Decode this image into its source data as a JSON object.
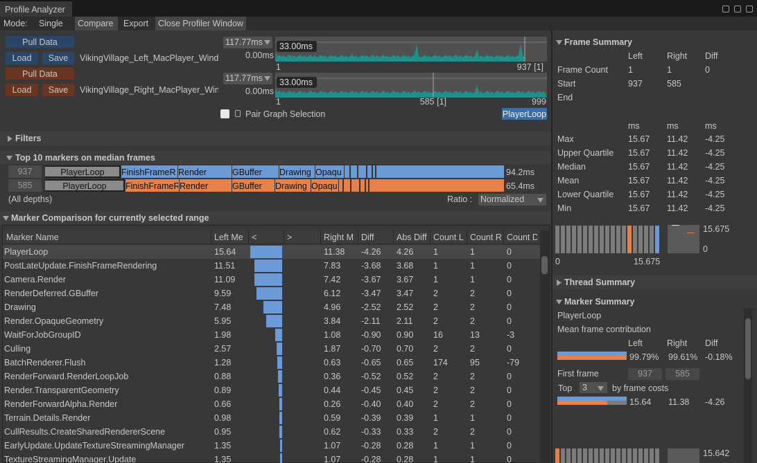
{
  "window": {
    "title": "Profile Analyzer"
  },
  "mode": {
    "label": "Mode:",
    "tabs": [
      "Single",
      "Compare",
      "Export",
      "Close Profiler Window"
    ]
  },
  "left": {
    "pull": "Pull Data",
    "load": "Load",
    "save": "Save",
    "file": "VikingVillage_Left_MacPlayer_Wind",
    "range": "117.77ms",
    "zero": "0.00ms",
    "marker": "33.00ms",
    "axis": [
      "1",
      "937 [1]"
    ]
  },
  "right": {
    "pull": "Pull Data",
    "load": "Load",
    "save": "Save",
    "file": "VikingVillage_Right_MacPlayer_Win",
    "range": "117.77ms",
    "zero": "0.00ms",
    "marker": "33.00ms",
    "axis": [
      "1",
      "585 [1]",
      "999"
    ]
  },
  "pair": {
    "label": "Pair Graph Selection",
    "selected": "PlayerLoop"
  },
  "filters": {
    "title": "Filters"
  },
  "top10": {
    "title": "Top 10 markers on median frames",
    "rows": [
      {
        "frame": "937",
        "markers": [
          "PlayerLoop",
          "FinishFrameR",
          "Render",
          "GBuffer",
          "Drawing",
          "Opaqu"
        ],
        "total": "94.2ms"
      },
      {
        "frame": "585",
        "markers": [
          "PlayerLoop",
          "FinishFrameR",
          "Render",
          "GBuffer",
          "Drawing",
          "Opaqu"
        ],
        "total": "65.4ms"
      }
    ],
    "depth": "(All depths)",
    "ratio_label": "Ratio :",
    "ratio": "Normalized"
  },
  "comparison": {
    "title": "Marker Comparison for currently selected range",
    "columns": [
      "Marker Name",
      "Left Me",
      "<",
      ">",
      "Right M",
      "Diff",
      "Abs Diff",
      "Count L",
      "Count R",
      "Count D"
    ],
    "rows": [
      [
        "PlayerLoop",
        "15.64",
        "11.38",
        "-4.26",
        "4.26",
        "1",
        "1",
        "0"
      ],
      [
        "PostLateUpdate.FinishFrameRendering",
        "11.51",
        "7.83",
        "-3.68",
        "3.68",
        "1",
        "1",
        "0"
      ],
      [
        "Camera.Render",
        "11.09",
        "7.42",
        "-3.67",
        "3.67",
        "1",
        "1",
        "0"
      ],
      [
        "RenderDeferred.GBuffer",
        "9.59",
        "6.12",
        "-3.47",
        "3.47",
        "2",
        "2",
        "0"
      ],
      [
        "Drawing",
        "7.48",
        "4.96",
        "-2.52",
        "2.52",
        "2",
        "2",
        "0"
      ],
      [
        "Render.OpaqueGeometry",
        "5.95",
        "3.84",
        "-2.11",
        "2.11",
        "2",
        "2",
        "0"
      ],
      [
        "WaitForJobGroupID",
        "1.98",
        "1.08",
        "-0.90",
        "0.90",
        "16",
        "13",
        "-3"
      ],
      [
        "Culling",
        "2.57",
        "1.87",
        "-0.70",
        "0.70",
        "2",
        "2",
        "0"
      ],
      [
        "BatchRenderer.Flush",
        "1.28",
        "0.63",
        "-0.65",
        "0.65",
        "174",
        "95",
        "-79"
      ],
      [
        "RenderForward.RenderLoopJob",
        "0.88",
        "0.36",
        "-0.52",
        "0.52",
        "2",
        "2",
        "0"
      ],
      [
        "Render.TransparentGeometry",
        "0.89",
        "0.44",
        "-0.45",
        "0.45",
        "2",
        "2",
        "0"
      ],
      [
        "RenderForwardAlpha.Render",
        "0.66",
        "0.26",
        "-0.40",
        "0.40",
        "2",
        "2",
        "0"
      ],
      [
        "Terrain.Details.Render",
        "0.98",
        "0.59",
        "-0.39",
        "0.39",
        "1",
        "1",
        "0"
      ],
      [
        "CullResults.CreateSharedRendererScene",
        "0.95",
        "0.62",
        "-0.33",
        "0.33",
        "2",
        "2",
        "0"
      ],
      [
        "EarlyUpdate.UpdateTextureStreamingManager",
        "1.35",
        "1.07",
        "-0.28",
        "0.28",
        "1",
        "1",
        "0"
      ],
      [
        "TextureStreamingManager.Update",
        "1.35",
        "1.07",
        "-0.28",
        "0.28",
        "1",
        "1",
        "0"
      ]
    ]
  },
  "frame_summary": {
    "title": "Frame Summary",
    "headers": [
      "Left",
      "Right",
      "Diff"
    ],
    "rows": [
      [
        "Frame Count",
        "1",
        "1",
        "0"
      ],
      [
        "Start",
        "937",
        "585"
      ],
      [
        "End"
      ]
    ],
    "units": [
      "ms",
      "ms",
      "ms"
    ],
    "stats": [
      [
        "Max",
        "15.67",
        "11.42",
        "-4.25"
      ],
      [
        "Upper Quartile",
        "15.67",
        "11.42",
        "-4.25"
      ],
      [
        "Median",
        "15.67",
        "11.42",
        "-4.25"
      ],
      [
        "Mean",
        "15.67",
        "11.42",
        "-4.25"
      ],
      [
        "Lower Quartile",
        "15.67",
        "11.42",
        "-4.25"
      ],
      [
        "Min",
        "15.67",
        "11.42",
        "-4.25"
      ]
    ],
    "hist_x": [
      "0",
      "15.675"
    ],
    "box_y": [
      "15.675",
      "0"
    ]
  },
  "thread_summary": {
    "title": "Thread Summary"
  },
  "marker_summary": {
    "title": "Marker Summary",
    "marker": "PlayerLoop",
    "caption": "Mean frame contribution",
    "headers": [
      "Left",
      "Right",
      "Diff"
    ],
    "contribution": [
      "99.79%",
      "99.61%",
      "-0.18%"
    ],
    "first_frame": "First frame",
    "first": [
      "937",
      "585"
    ],
    "top": "Top",
    "top_n": "3",
    "top_suffix": "by frame costs",
    "top_values": [
      "15.64",
      "11.38",
      "-4.26"
    ],
    "bottom_value": "15.642"
  }
}
